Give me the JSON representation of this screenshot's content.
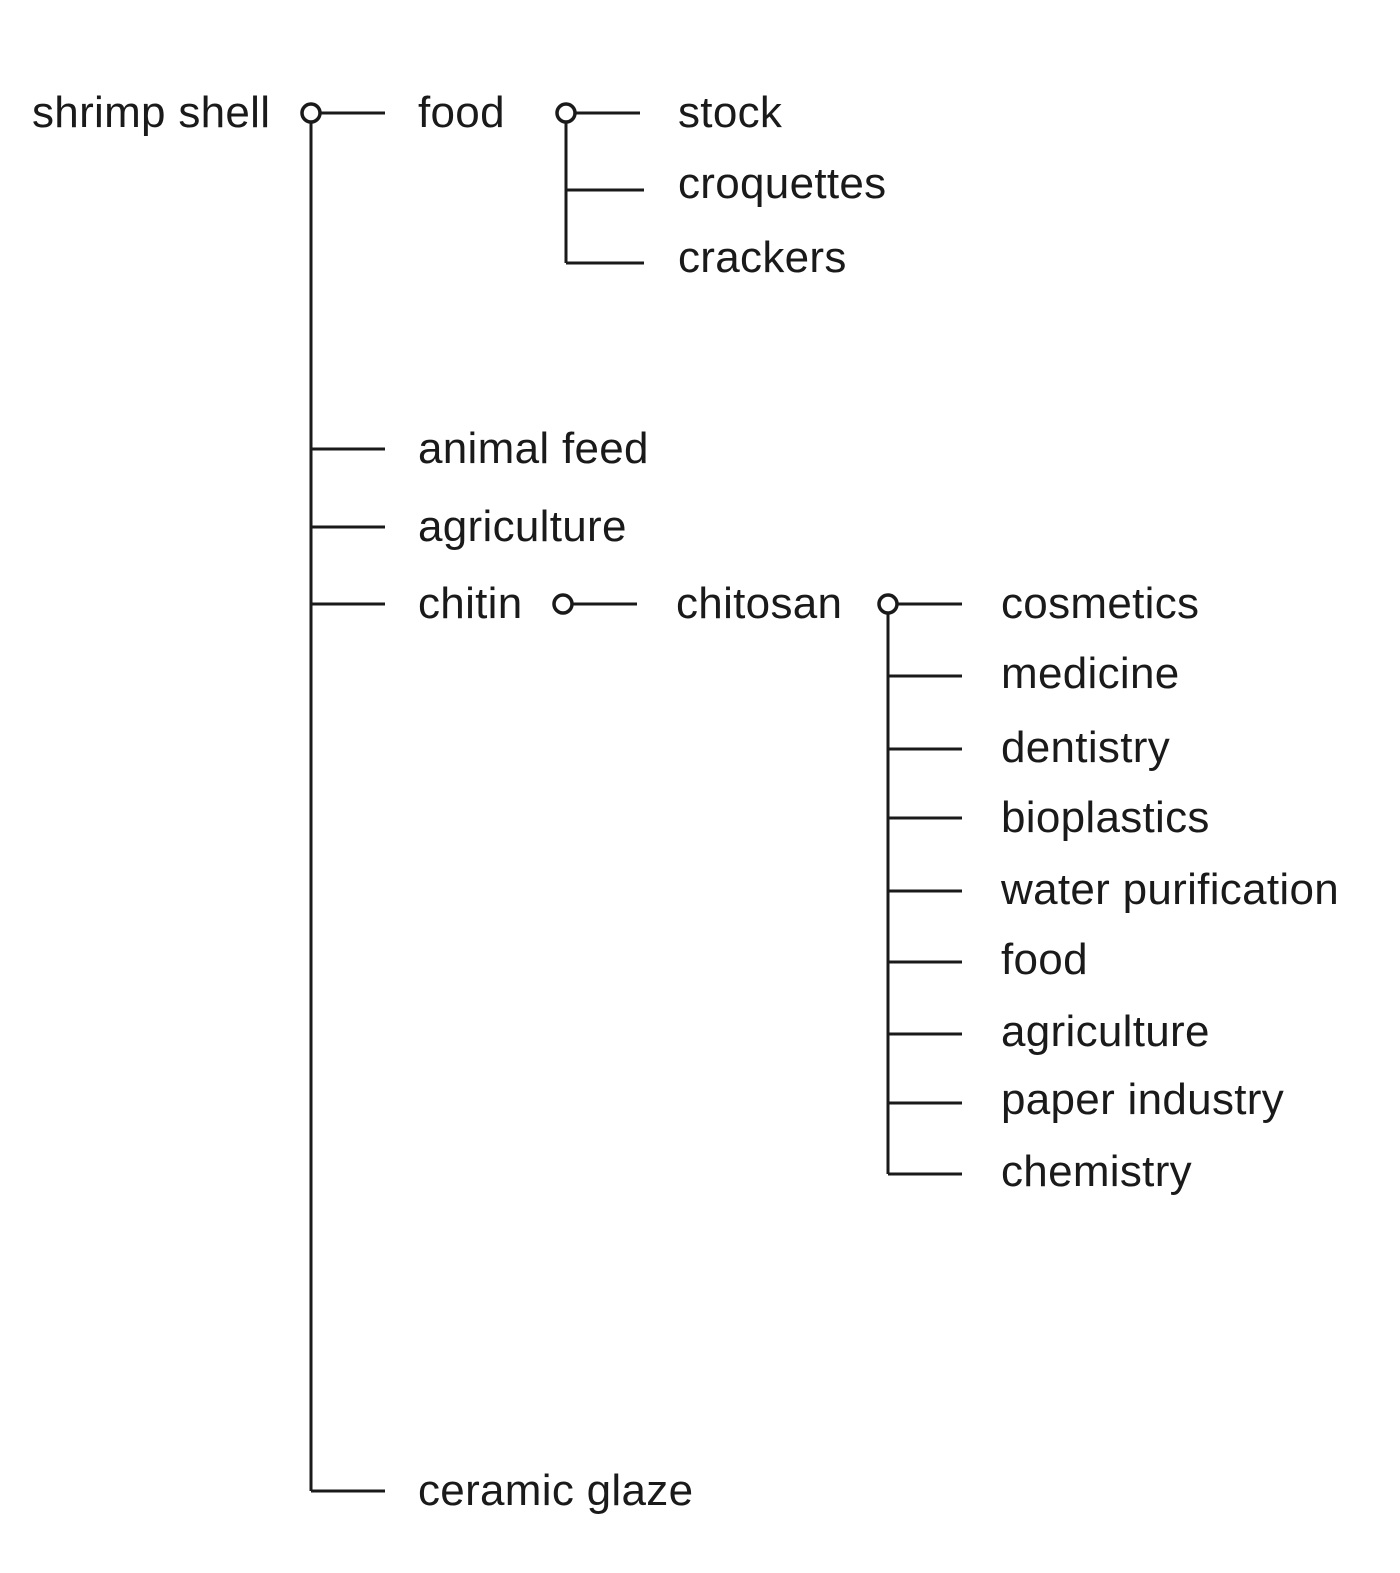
{
  "tree": {
    "root": {
      "label": "shrimp shell",
      "children": [
        {
          "label": "food",
          "children": [
            {
              "label": "stock"
            },
            {
              "label": "croquettes"
            },
            {
              "label": "crackers"
            }
          ]
        },
        {
          "label": "animal feed"
        },
        {
          "label": "agriculture"
        },
        {
          "label": "chitin",
          "children": [
            {
              "label": "chitosan",
              "children": [
                {
                  "label": "cosmetics"
                },
                {
                  "label": "medicine"
                },
                {
                  "label": "dentistry"
                },
                {
                  "label": "bioplastics"
                },
                {
                  "label": "water purification"
                },
                {
                  "label": "food"
                },
                {
                  "label": "agriculture"
                },
                {
                  "label": "paper industry"
                },
                {
                  "label": "chemistry"
                }
              ]
            }
          ]
        },
        {
          "label": "ceramic glaze"
        }
      ]
    }
  }
}
